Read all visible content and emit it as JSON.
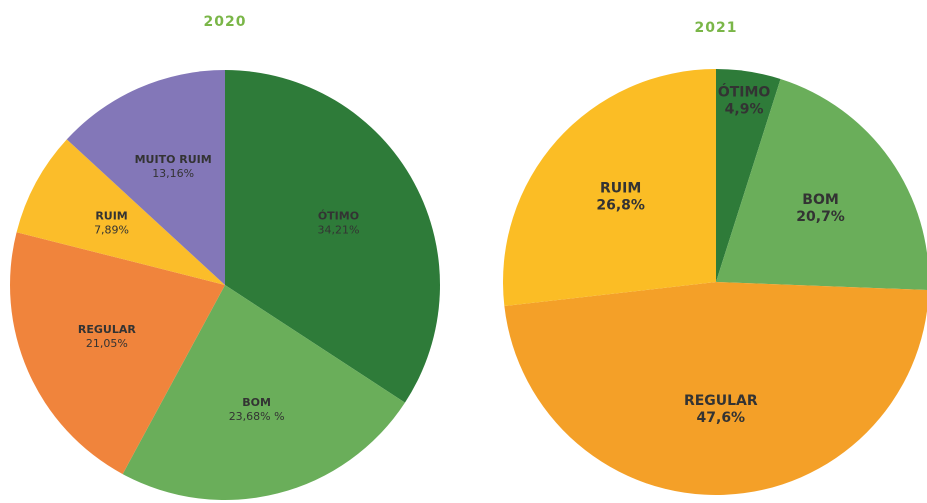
{
  "chart_data": [
    {
      "type": "pie",
      "title": "2020",
      "categories": [
        "ÓTIMO",
        "BOM",
        "REGULAR",
        "RUIM",
        "MUITO RUIM"
      ],
      "values": [
        34.21,
        23.68,
        21.05,
        7.89,
        13.16
      ],
      "value_labels": [
        "34,21%",
        "23,68% %",
        "21,05%",
        "7,89%",
        "13,16%"
      ],
      "colors": [
        "#2e7b39",
        "#6aae5a",
        "#f0843c",
        "#fbbd2a",
        "#8377b8"
      ]
    },
    {
      "type": "pie",
      "title": "2021",
      "categories": [
        "ÓTIMO",
        "BOM",
        "REGULAR",
        "RUIM"
      ],
      "values": [
        4.9,
        20.7,
        47.6,
        26.8
      ],
      "value_labels": [
        "4,9%",
        "20,7%",
        "47,6%",
        "26,8%"
      ],
      "colors": [
        "#2e7b39",
        "#6aae5a",
        "#f4a028",
        "#fbbd25"
      ]
    }
  ]
}
